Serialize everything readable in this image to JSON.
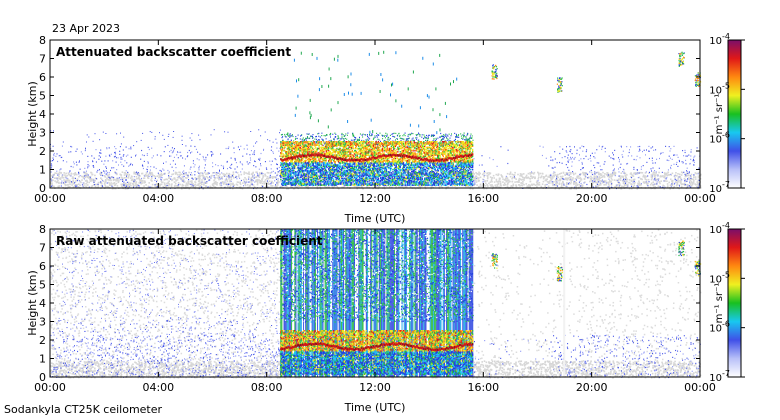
{
  "date": "23 Apr 2023",
  "footer": "Sodankyla CT25K ceilometer",
  "colormap": [
    "#ffffff",
    "#b8c0f8",
    "#4050e8",
    "#18c8f0",
    "#18c020",
    "#f0f020",
    "#ff8810",
    "#e01818",
    "#7a0e6a"
  ],
  "chart_data": [
    {
      "type": "heatmap",
      "title": "Attenuated backscatter coefficient",
      "xlabel": "Time (UTC)",
      "ylabel": "Height (km)",
      "x_ticks": [
        "00:00",
        "04:00",
        "08:00",
        "12:00",
        "16:00",
        "20:00",
        "00:00"
      ],
      "x_range_hours": [
        0,
        24
      ],
      "y_ticks": [
        "0",
        "1",
        "2",
        "3",
        "4",
        "5",
        "6",
        "7",
        "8"
      ],
      "ylim": [
        0,
        8
      ],
      "colorbar": {
        "ticks": [
          {
            "base": "10",
            "exp": "-7"
          },
          {
            "base": "10",
            "exp": "-6"
          },
          {
            "base": "10",
            "exp": "-5"
          },
          {
            "base": "10",
            "exp": "-4"
          }
        ],
        "unit": "m⁻¹ sr⁻¹"
      },
      "features": {
        "aerosol_layer_top_km": 2.3,
        "dense_cloud_period_hours": [
          8.5,
          15.6
        ],
        "cloud_base_km": 1.7,
        "high_cloud_events": [
          {
            "t": 16.4,
            "h": 6.3
          },
          {
            "t": 18.8,
            "h": 5.6
          },
          {
            "t": 23.3,
            "h": 7.0
          },
          {
            "t": 23.9,
            "h": 5.9
          }
        ]
      }
    },
    {
      "type": "heatmap",
      "title": "Raw attenuated backscatter coefficient",
      "xlabel": "Time (UTC)",
      "ylabel": "Height (km)",
      "x_ticks": [
        "00:00",
        "04:00",
        "08:00",
        "12:00",
        "16:00",
        "20:00",
        "00:00"
      ],
      "x_range_hours": [
        0,
        24
      ],
      "y_ticks": [
        "0",
        "1",
        "2",
        "3",
        "4",
        "5",
        "6",
        "7",
        "8"
      ],
      "ylim": [
        0,
        8
      ],
      "colorbar": {
        "ticks": [
          {
            "base": "10",
            "exp": "-7"
          },
          {
            "base": "10",
            "exp": "-6"
          },
          {
            "base": "10",
            "exp": "-5"
          },
          {
            "base": "10",
            "exp": "-4"
          }
        ],
        "unit": "m⁻¹ sr⁻¹"
      },
      "features": {
        "aerosol_layer_top_km": 2.3,
        "dense_cloud_period_hours": [
          8.5,
          15.6
        ],
        "cloud_base_km": 1.7,
        "noise_full_column": true
      }
    }
  ]
}
